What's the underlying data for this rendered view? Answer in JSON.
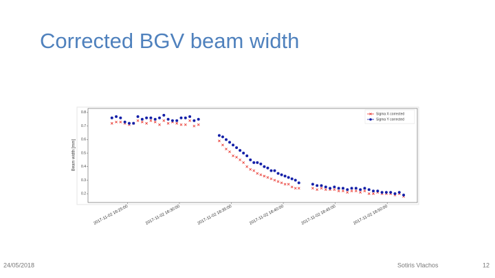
{
  "chart_data": {
    "type": "scatter",
    "title": "Corrected BGV beam width",
    "ylabel": "Beam width [mm]",
    "x": [
      "2017-11-02 16:23:30",
      "2017-11-02 16:23:55",
      "2017-11-02 16:24:20",
      "2017-11-02 16:24:45",
      "2017-11-02 16:25:10",
      "2017-11-02 16:25:35",
      "2017-11-02 16:26:00",
      "2017-11-02 16:26:25",
      "2017-11-02 16:26:50",
      "2017-11-02 16:27:15",
      "2017-11-02 16:27:40",
      "2017-11-02 16:28:05",
      "2017-11-02 16:28:30",
      "2017-11-02 16:28:55",
      "2017-11-02 16:29:20",
      "2017-11-02 16:29:45",
      "2017-11-02 16:30:10",
      "2017-11-02 16:30:35",
      "2017-11-02 16:31:00",
      "2017-11-02 16:31:25",
      "2017-11-02 16:31:50",
      "2017-11-02 16:33:50",
      "2017-11-02 16:34:10",
      "2017-11-02 16:34:30",
      "2017-11-02 16:34:50",
      "2017-11-02 16:35:10",
      "2017-11-02 16:35:30",
      "2017-11-02 16:35:50",
      "2017-11-02 16:36:10",
      "2017-11-02 16:36:30",
      "2017-11-02 16:36:50",
      "2017-11-02 16:37:10",
      "2017-11-02 16:37:30",
      "2017-11-02 16:37:50",
      "2017-11-02 16:38:10",
      "2017-11-02 16:38:30",
      "2017-11-02 16:38:50",
      "2017-11-02 16:39:10",
      "2017-11-02 16:39:30",
      "2017-11-02 16:39:50",
      "2017-11-02 16:40:10",
      "2017-11-02 16:40:30",
      "2017-11-02 16:40:50",
      "2017-11-02 16:41:10",
      "2017-11-02 16:41:30",
      "2017-11-02 16:42:50",
      "2017-11-02 16:43:15",
      "2017-11-02 16:43:40",
      "2017-11-02 16:44:05",
      "2017-11-02 16:44:30",
      "2017-11-02 16:44:55",
      "2017-11-02 16:45:20",
      "2017-11-02 16:45:45",
      "2017-11-02 16:46:10",
      "2017-11-02 16:46:35",
      "2017-11-02 16:47:00",
      "2017-11-02 16:47:25",
      "2017-11-02 16:47:50",
      "2017-11-02 16:48:15",
      "2017-11-02 16:48:40",
      "2017-11-02 16:49:05",
      "2017-11-02 16:49:30",
      "2017-11-02 16:49:55",
      "2017-11-02 16:50:20",
      "2017-11-02 16:50:45",
      "2017-11-02 16:51:10",
      "2017-11-02 16:51:35"
    ],
    "series": [
      {
        "name": "Sigma X corrected",
        "color": "#e8312a",
        "marker": "x",
        "values": [
          0.72,
          0.73,
          0.73,
          0.72,
          0.71,
          0.72,
          0.74,
          0.73,
          0.72,
          0.74,
          0.73,
          0.71,
          0.74,
          0.72,
          0.73,
          0.72,
          0.71,
          0.71,
          0.74,
          0.7,
          0.71,
          0.59,
          0.56,
          0.53,
          0.51,
          0.48,
          0.47,
          0.45,
          0.43,
          0.4,
          0.38,
          0.37,
          0.35,
          0.34,
          0.33,
          0.32,
          0.31,
          0.3,
          0.29,
          0.28,
          0.27,
          0.27,
          0.25,
          0.24,
          0.24,
          0.24,
          0.23,
          0.24,
          0.23,
          0.23,
          0.23,
          0.22,
          0.22,
          0.21,
          0.22,
          0.22,
          0.21,
          0.22,
          0.2,
          0.2,
          0.21,
          0.2,
          0.2,
          0.2,
          0.19,
          0.2,
          0.18
        ]
      },
      {
        "name": "Sigma Y corrected",
        "color": "#1420a8",
        "marker": "o",
        "values": [
          0.76,
          0.77,
          0.76,
          0.73,
          0.72,
          0.72,
          0.77,
          0.75,
          0.76,
          0.76,
          0.75,
          0.76,
          0.78,
          0.75,
          0.74,
          0.74,
          0.76,
          0.76,
          0.77,
          0.74,
          0.75,
          0.63,
          0.62,
          0.6,
          0.58,
          0.56,
          0.54,
          0.52,
          0.5,
          0.48,
          0.45,
          0.43,
          0.43,
          0.42,
          0.4,
          0.39,
          0.37,
          0.37,
          0.35,
          0.34,
          0.33,
          0.32,
          0.31,
          0.3,
          0.28,
          0.27,
          0.26,
          0.26,
          0.25,
          0.24,
          0.25,
          0.24,
          0.24,
          0.23,
          0.24,
          0.24,
          0.23,
          0.24,
          0.23,
          0.22,
          0.22,
          0.21,
          0.21,
          0.21,
          0.2,
          0.21,
          0.19
        ]
      }
    ],
    "xlim": [
      "2017-11-02 16:21:12",
      "2017-11-02 16:52:54"
    ],
    "xticks": [
      "2017-11-02 16:25:00",
      "2017-11-02 16:30:00",
      "2017-11-02 16:35:00",
      "2017-11-02 16:40:00",
      "2017-11-02 16:45:00",
      "2017-11-02 16:50:00"
    ],
    "ylim": [
      0.135,
      0.83
    ],
    "yticks": [
      0.2,
      0.3,
      0.4,
      0.5,
      0.6,
      0.7,
      0.8
    ],
    "legend": "upper right"
  },
  "footer": {
    "date": "24/05/2018",
    "author": "Sotiris Vlachos",
    "page": "12"
  }
}
